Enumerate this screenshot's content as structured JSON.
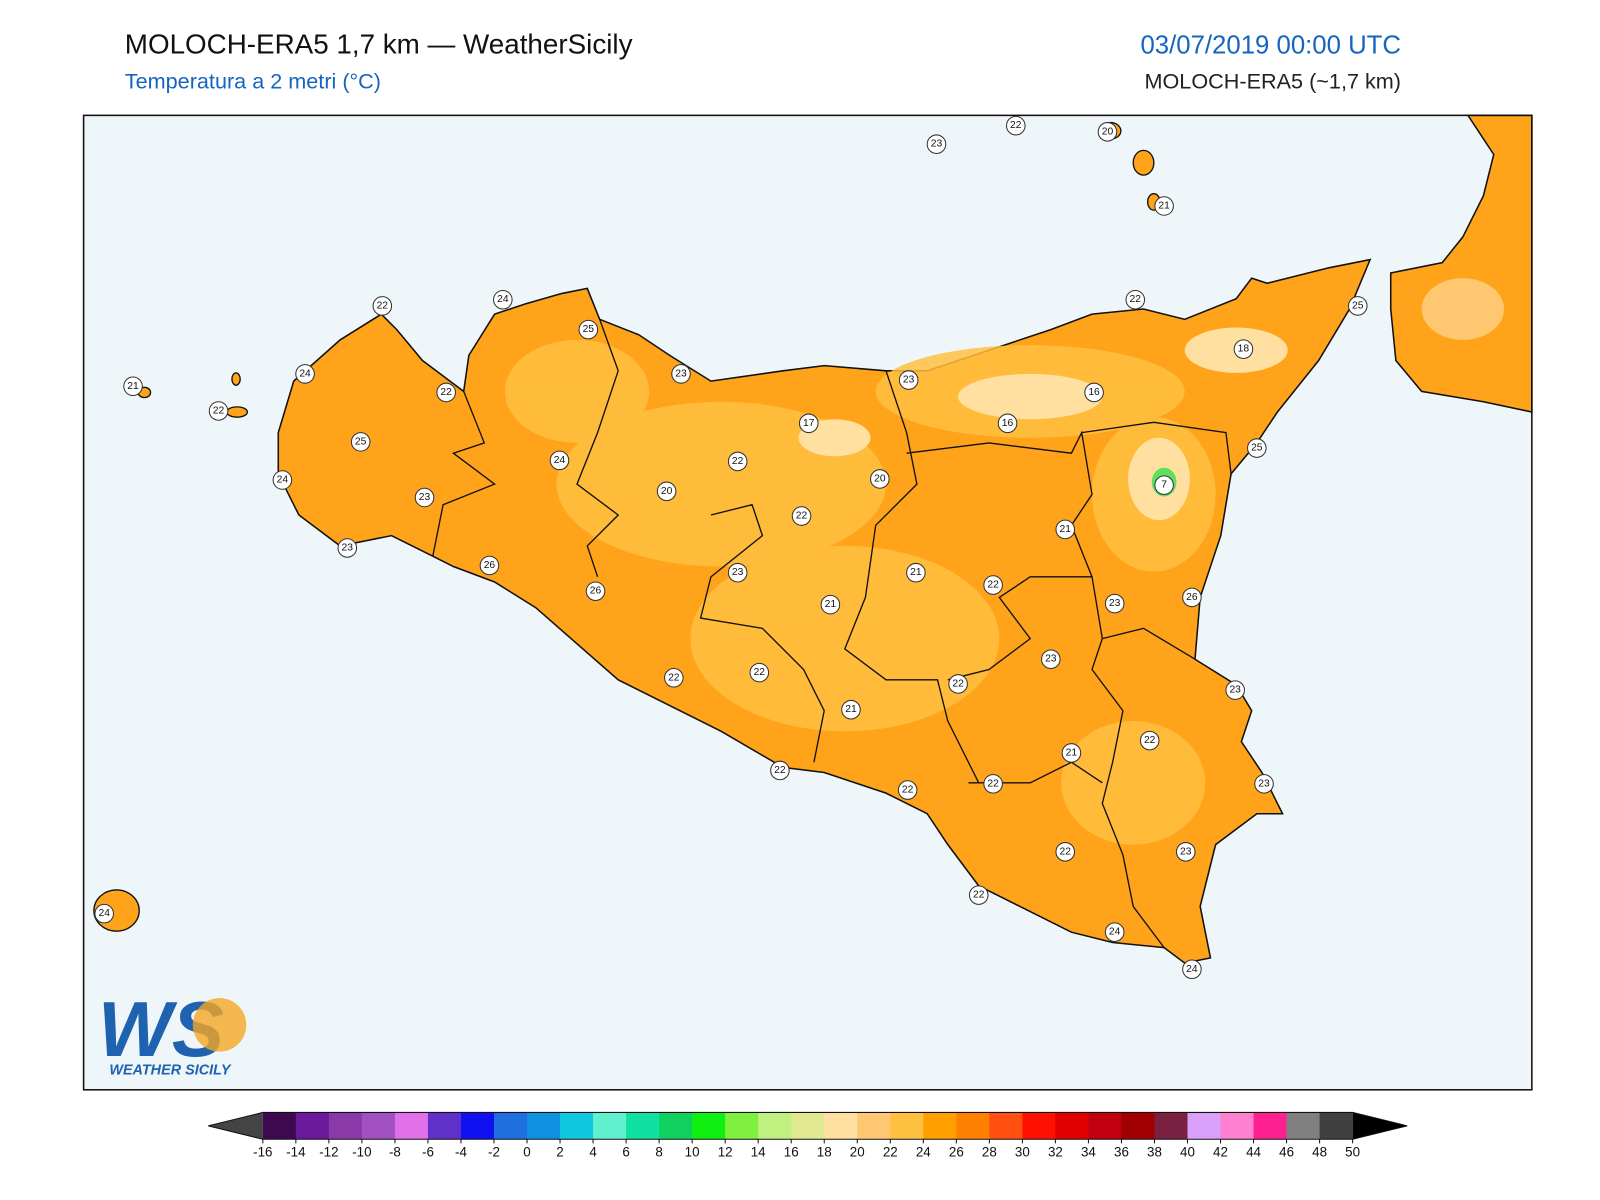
{
  "header": {
    "title": "MOLOCH-ERA5 1,7 km — WeatherSicily",
    "subtitle": "Temperatura a 2 metri (°C)",
    "datetime": "03/07/2019 00:00 UTC",
    "model": "MOLOCH-ERA5 (~1,7 km)"
  },
  "map": {
    "stations": [
      23,
      22,
      20,
      21,
      22,
      24,
      25,
      23,
      23,
      22,
      25,
      18,
      21,
      22,
      24,
      22,
      16,
      16,
      17,
      25,
      24,
      22,
      20,
      25,
      7,
      24,
      23,
      20,
      22,
      21,
      23,
      26,
      26,
      23,
      21,
      22,
      26,
      21,
      23,
      23,
      22,
      23,
      22,
      22,
      21,
      22,
      21,
      22,
      22,
      22,
      23,
      22,
      23,
      22,
      24,
      24,
      24
    ]
  },
  "logo": {
    "mark": "WS",
    "name": "WEATHER SICILY"
  },
  "colorbar": {
    "ticks": [
      -16,
      -14,
      -12,
      -10,
      -8,
      -6,
      -4,
      -2,
      0,
      2,
      4,
      6,
      8,
      10,
      12,
      14,
      16,
      18,
      20,
      22,
      24,
      26,
      28,
      30,
      32,
      34,
      36,
      38,
      40,
      42,
      44,
      46,
      48,
      50
    ],
    "colors": [
      "#3d0a52",
      "#6a1a9a",
      "#8a3aa8",
      "#a050c0",
      "#e070e8",
      "#6030c8",
      "#1010f0",
      "#1f6fe0",
      "#1090e0",
      "#10c8e0",
      "#60f0d0",
      "#10e0a0",
      "#10d060",
      "#10f010",
      "#80f040",
      "#c0f080",
      "#e0e890",
      "#ffe0a0",
      "#ffc870",
      "#ffc040",
      "#ffa000",
      "#ff8000",
      "#ff5010",
      "#ff1000",
      "#e00000",
      "#c00010",
      "#a00000",
      "#7a2040",
      "#d8a0f8",
      "#ff80d0",
      "#ff2090",
      "#808080",
      "#404040"
    ],
    "under_color": "#444444",
    "over_color": "#000000"
  }
}
